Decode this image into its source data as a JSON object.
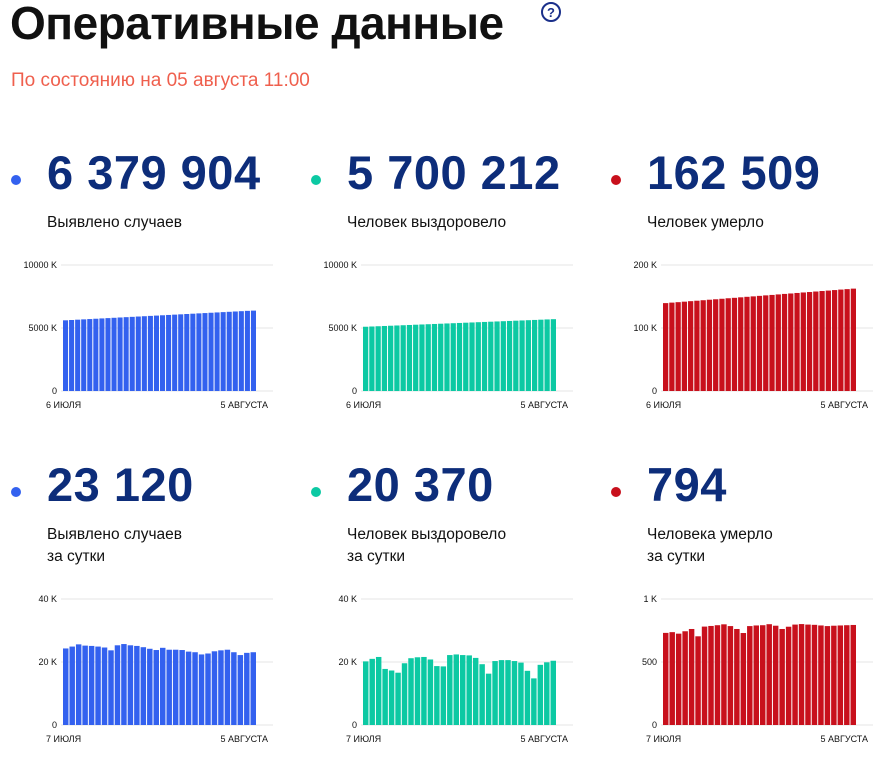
{
  "header": {
    "title": "Оперативные данные",
    "help_icon": "?",
    "subtitle": "По состоянию на 05 августа 11:00"
  },
  "stats": [
    {
      "value": "6 379 904",
      "label_line1": "Выявлено случаев",
      "label_line2": "",
      "color": "#3361ef"
    },
    {
      "value": "5 700 212",
      "label_line1": "Человек выздоровело",
      "label_line2": "",
      "color": "#0cc9a3"
    },
    {
      "value": "162 509",
      "label_line1": "Человек умерло",
      "label_line2": "",
      "color": "#c8101c"
    },
    {
      "value": "23 120",
      "label_line1": "Выявлено случаев",
      "label_line2": "за сутки",
      "color": "#3361ef"
    },
    {
      "value": "20 370",
      "label_line1": "Человек выздоровело",
      "label_line2": "за сутки",
      "color": "#0cc9a3"
    },
    {
      "value": "794",
      "label_line1": "Человека умерло",
      "label_line2": "за сутки",
      "color": "#c8101c"
    }
  ],
  "chart_data": [
    {
      "type": "bar",
      "color": "#3361ef",
      "ylim": [
        0,
        10000
      ],
      "y_ticks": [
        0,
        5000,
        10000
      ],
      "y_tick_labels": [
        "0",
        "5000 K",
        "10000 K"
      ],
      "x_start_label": "6 ИЮЛЯ",
      "x_end_label": "5 АВГУСТА",
      "values": [
        5610,
        5635,
        5660,
        5685,
        5710,
        5735,
        5760,
        5785,
        5810,
        5835,
        5860,
        5885,
        5910,
        5935,
        5960,
        5985,
        6010,
        6035,
        6060,
        6085,
        6110,
        6135,
        6160,
        6185,
        6210,
        6235,
        6260,
        6285,
        6310,
        6335,
        6360,
        6380
      ]
    },
    {
      "type": "bar",
      "color": "#0cc9a3",
      "ylim": [
        0,
        10000
      ],
      "y_ticks": [
        0,
        5000,
        10000
      ],
      "y_tick_labels": [
        "0",
        "5000 K",
        "10000 K"
      ],
      "x_start_label": "6 ИЮЛЯ",
      "x_end_label": "5 АВГУСТА",
      "values": [
        5100,
        5120,
        5140,
        5160,
        5180,
        5200,
        5220,
        5240,
        5260,
        5280,
        5300,
        5320,
        5340,
        5360,
        5380,
        5400,
        5420,
        5440,
        5460,
        5480,
        5500,
        5520,
        5540,
        5560,
        5580,
        5600,
        5620,
        5640,
        5660,
        5680,
        5700
      ]
    },
    {
      "type": "bar",
      "color": "#c8101c",
      "ylim": [
        0,
        200
      ],
      "y_ticks": [
        0,
        100,
        200
      ],
      "y_tick_labels": [
        "0",
        "100 K",
        "200 K"
      ],
      "x_start_label": "6 ИЮЛЯ",
      "x_end_label": "5 АВГУСТА",
      "values": [
        139.5,
        140.3,
        141.0,
        141.8,
        142.6,
        143.3,
        144.1,
        144.9,
        145.6,
        146.4,
        147.2,
        147.9,
        148.7,
        149.5,
        150.2,
        151.0,
        151.8,
        152.5,
        153.3,
        154.1,
        154.8,
        155.6,
        156.4,
        157.1,
        157.9,
        158.7,
        159.4,
        160.2,
        161.0,
        161.7,
        162.5
      ]
    },
    {
      "type": "bar",
      "color": "#3361ef",
      "ylim": [
        0,
        40
      ],
      "y_ticks": [
        0,
        20,
        40
      ],
      "y_tick_labels": [
        "0",
        "20 K",
        "40 K"
      ],
      "x_start_label": "7 ИЮЛЯ",
      "x_end_label": "5 АВГУСТА",
      "values": [
        24.3,
        24.9,
        25.6,
        25.2,
        25.1,
        24.9,
        24.6,
        23.7,
        25.3,
        25.7,
        25.3,
        25.1,
        24.7,
        24.2,
        23.8,
        24.5,
        23.9,
        23.9,
        23.8,
        23.3,
        23.1,
        22.4,
        22.7,
        23.4,
        23.7,
        23.9,
        23.1,
        22.2,
        22.9,
        23.1
      ]
    },
    {
      "type": "bar",
      "color": "#0cc9a3",
      "ylim": [
        0,
        40
      ],
      "y_ticks": [
        0,
        20,
        40
      ],
      "y_tick_labels": [
        "0",
        "20 K",
        "40 K"
      ],
      "x_start_label": "7 ИЮЛЯ",
      "x_end_label": "5 АВГУСТА",
      "values": [
        20.2,
        21.0,
        21.6,
        17.8,
        17.3,
        16.6,
        19.6,
        21.2,
        21.5,
        21.6,
        20.8,
        18.7,
        18.6,
        22.2,
        22.4,
        22.2,
        22.1,
        21.3,
        19.3,
        16.3,
        20.3,
        20.6,
        20.6,
        20.3,
        19.8,
        17.2,
        14.8,
        19.1,
        19.9,
        20.4
      ]
    },
    {
      "type": "bar",
      "color": "#c8101c",
      "ylim": [
        0,
        1000
      ],
      "y_ticks": [
        0,
        500,
        1000
      ],
      "y_tick_labels": [
        "0",
        "500",
        "1 K"
      ],
      "x_start_label": "7 ИЮЛЯ",
      "x_end_label": "5 АВГУСТА",
      "values": [
        731,
        737,
        725,
        744,
        762,
        704,
        781,
        786,
        792,
        799,
        785,
        762,
        730,
        785,
        790,
        792,
        800,
        788,
        762,
        780,
        797,
        801,
        797,
        795,
        790,
        785,
        788,
        790,
        792,
        794
      ]
    }
  ]
}
